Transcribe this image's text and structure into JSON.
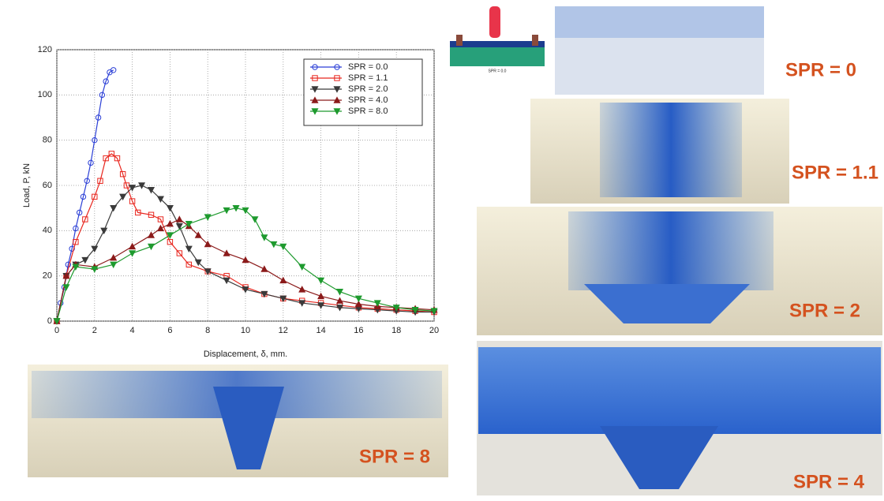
{
  "chart_data": {
    "type": "line",
    "xlabel": "Displacement, δ, mm.",
    "ylabel": "Load, P, kN",
    "xlim": [
      0,
      20
    ],
    "xticks": [
      0,
      2,
      4,
      6,
      8,
      10,
      12,
      14,
      16,
      18,
      20
    ],
    "ylim": [
      0,
      120
    ],
    "yticks": [
      0,
      20,
      40,
      60,
      80,
      100,
      120
    ],
    "grid": true,
    "legend": "upper right",
    "series": [
      {
        "name": "SPR = 0.0",
        "color": "#2b3fd6",
        "marker": "circle",
        "x": [
          0,
          0.2,
          0.4,
          0.6,
          0.8,
          1.0,
          1.2,
          1.4,
          1.6,
          1.8,
          2.0,
          2.2,
          2.4,
          2.6,
          2.8,
          3.0
        ],
        "values": [
          0,
          8,
          15,
          25,
          32,
          41,
          48,
          55,
          62,
          70,
          80,
          90,
          100,
          106,
          110,
          111
        ]
      },
      {
        "name": "SPR = 1.1",
        "color": "#e8261e",
        "marker": "square",
        "x": [
          0,
          0.5,
          1,
          1.5,
          2,
          2.3,
          2.6,
          2.9,
          3.2,
          3.5,
          3.7,
          4,
          4.3,
          5,
          5.5,
          6,
          6.5,
          7,
          8,
          9,
          10,
          11,
          12,
          13,
          14,
          15,
          16,
          17,
          18,
          19,
          20
        ],
        "values": [
          0,
          20,
          35,
          45,
          55,
          62,
          72,
          74,
          72,
          65,
          60,
          53,
          48,
          47,
          45,
          35,
          30,
          25,
          22,
          20,
          15,
          12,
          10,
          9,
          8,
          7,
          6,
          5.5,
          5,
          4.5,
          4
        ]
      },
      {
        "name": "SPR = 2.0",
        "color": "#3a3a3a",
        "marker": "tri-down",
        "x": [
          0,
          0.5,
          1,
          1.5,
          2,
          2.5,
          3,
          3.5,
          4,
          4.5,
          5,
          5.5,
          6,
          6.5,
          7,
          7.5,
          8,
          9,
          10,
          11,
          12,
          13,
          14,
          15,
          16,
          17,
          18,
          19,
          20
        ],
        "values": [
          0,
          20,
          25,
          27,
          32,
          40,
          50,
          55,
          59,
          60,
          58,
          54,
          50,
          42,
          32,
          26,
          22,
          18,
          14,
          12,
          10,
          8,
          7,
          6,
          5.5,
          5,
          4.5,
          4,
          4
        ]
      },
      {
        "name": "SPR = 4.0",
        "color": "#8b1a1a",
        "marker": "tri-up",
        "x": [
          0,
          0.5,
          1,
          2,
          3,
          4,
          5,
          5.5,
          6,
          6.5,
          7,
          7.5,
          8,
          9,
          10,
          11,
          12,
          13,
          14,
          15,
          16,
          17,
          18,
          19,
          20
        ],
        "values": [
          0,
          20,
          25,
          24,
          28,
          33,
          38,
          41,
          43,
          45,
          42,
          38,
          34,
          30,
          27,
          23,
          18,
          14,
          11,
          9,
          7.5,
          6.5,
          6,
          5.5,
          5
        ]
      },
      {
        "name": "SPR = 8.0",
        "color": "#1e9a2e",
        "marker": "tri-down",
        "x": [
          0,
          0.5,
          1,
          2,
          3,
          4,
          5,
          6,
          7,
          8,
          9,
          9.5,
          10,
          10.5,
          11,
          11.5,
          12,
          13,
          14,
          15,
          16,
          17,
          18,
          19,
          20
        ],
        "values": [
          0,
          15,
          24,
          23,
          25,
          30,
          33,
          38,
          43,
          46,
          49,
          50,
          49,
          45,
          37,
          34,
          33,
          24,
          18,
          13,
          10,
          8,
          6,
          5,
          4.5
        ]
      }
    ]
  },
  "schematic": {
    "label": "SPR = 0.0"
  },
  "photos": [
    {
      "label": "SPR = 8"
    },
    {
      "label": "SPR = 0"
    },
    {
      "label": "SPR = 1.1"
    },
    {
      "label": "SPR = 2"
    },
    {
      "label": "SPR = 4"
    }
  ]
}
